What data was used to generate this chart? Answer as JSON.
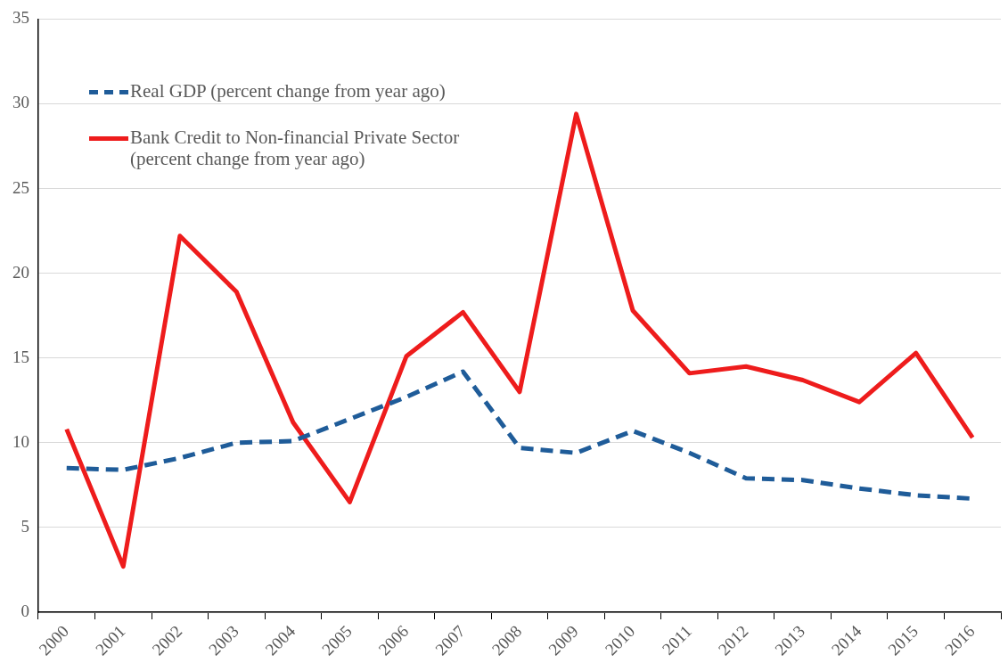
{
  "chart_data": {
    "type": "line",
    "categories": [
      "2000",
      "2001",
      "2002",
      "2003",
      "2004",
      "2005",
      "2006",
      "2007",
      "2008",
      "2009",
      "2010",
      "2011",
      "2012",
      "2013",
      "2014",
      "2015",
      "2016"
    ],
    "series": [
      {
        "name": "Real GDP (percent change from year ago)",
        "color": "#1f5c99",
        "line_style": "dashed",
        "values": [
          8.5,
          8.4,
          9.1,
          10.0,
          10.1,
          11.4,
          12.7,
          14.2,
          9.7,
          9.4,
          10.7,
          9.4,
          7.9,
          7.8,
          7.3,
          6.9,
          6.7
        ]
      },
      {
        "name": "Bank Credit to Non-financial Private Sector (percent change from year ago)",
        "color": "#ee1c1c",
        "line_style": "solid",
        "values": [
          10.8,
          2.7,
          22.2,
          18.9,
          11.2,
          6.5,
          15.1,
          17.7,
          13.0,
          29.4,
          17.8,
          14.1,
          14.5,
          13.7,
          12.4,
          15.3,
          10.3
        ]
      }
    ],
    "ylim": [
      0,
      35
    ],
    "yticks": [
      0,
      5,
      10,
      15,
      20,
      25,
      30,
      35
    ],
    "grid": "y",
    "legend": "top left",
    "marker": "none"
  }
}
